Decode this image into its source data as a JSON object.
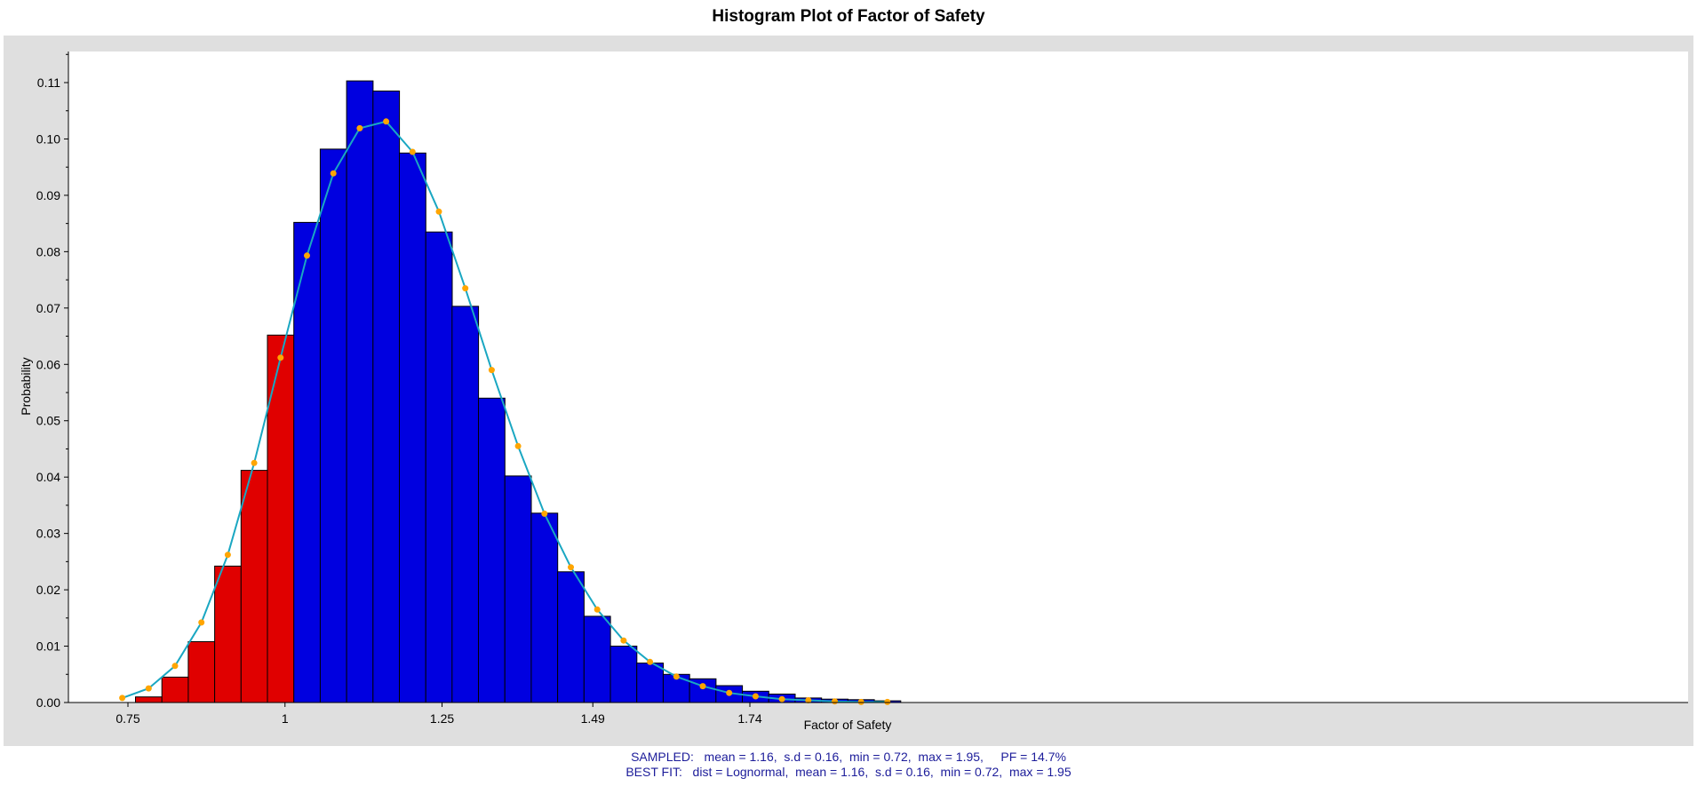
{
  "chart_data": {
    "type": "bar",
    "title": "Histogram Plot of Factor of Safety",
    "xlabel": "Factor of Safety",
    "ylabel": "Probability",
    "xlim": [
      0.72,
      1.95
    ],
    "ylim": [
      0,
      0.115
    ],
    "x_ticks": [
      0.75,
      1,
      1.25,
      1.49,
      1.74
    ],
    "x_tick_labels": [
      "0.75",
      "1",
      "1.25",
      "1.49",
      "1.74"
    ],
    "y_ticks": [
      0,
      0.01,
      0.02,
      0.03,
      0.04,
      0.05,
      0.06,
      0.07,
      0.08,
      0.09,
      0.1,
      0.11
    ],
    "y_tick_labels": [
      "0.00",
      "0.01",
      "0.02",
      "0.03",
      "0.04",
      "0.05",
      "0.06",
      "0.07",
      "0.08",
      "0.09",
      "0.10",
      "0.11"
    ],
    "grid": false,
    "bin_width": 0.0422,
    "bins": [
      {
        "x0": 0.762,
        "value": 0.001,
        "failed": true
      },
      {
        "x0": 0.804,
        "value": 0.0045,
        "failed": true
      },
      {
        "x0": 0.846,
        "value": 0.0108,
        "failed": true
      },
      {
        "x0": 0.888,
        "value": 0.0242,
        "failed": true
      },
      {
        "x0": 0.93,
        "value": 0.0412,
        "failed": true
      },
      {
        "x0": 0.972,
        "value": 0.0652,
        "failed": true
      },
      {
        "x0": 1.014,
        "value": 0.0852,
        "failed": false
      },
      {
        "x0": 1.056,
        "value": 0.0982,
        "failed": false
      },
      {
        "x0": 1.098,
        "value": 0.1103,
        "failed": false
      },
      {
        "x0": 1.14,
        "value": 0.1085,
        "failed": false
      },
      {
        "x0": 1.182,
        "value": 0.0975,
        "failed": false
      },
      {
        "x0": 1.224,
        "value": 0.0835,
        "failed": false
      },
      {
        "x0": 1.266,
        "value": 0.0703,
        "failed": false
      },
      {
        "x0": 1.308,
        "value": 0.054,
        "failed": false
      },
      {
        "x0": 1.35,
        "value": 0.0402,
        "failed": false
      },
      {
        "x0": 1.392,
        "value": 0.0336,
        "failed": false
      },
      {
        "x0": 1.434,
        "value": 0.0232,
        "failed": false
      },
      {
        "x0": 1.476,
        "value": 0.0153,
        "failed": false
      },
      {
        "x0": 1.518,
        "value": 0.01,
        "failed": false
      },
      {
        "x0": 1.56,
        "value": 0.007,
        "failed": false
      },
      {
        "x0": 1.602,
        "value": 0.005,
        "failed": false
      },
      {
        "x0": 1.644,
        "value": 0.0042,
        "failed": false
      },
      {
        "x0": 1.686,
        "value": 0.003,
        "failed": false
      },
      {
        "x0": 1.728,
        "value": 0.002,
        "failed": false
      },
      {
        "x0": 1.77,
        "value": 0.0015,
        "failed": false
      },
      {
        "x0": 1.812,
        "value": 0.0008,
        "failed": false
      },
      {
        "x0": 1.854,
        "value": 0.0006,
        "failed": false
      },
      {
        "x0": 1.896,
        "value": 0.0005,
        "failed": false
      },
      {
        "x0": 1.938,
        "value": 0.0003,
        "failed": false
      }
    ],
    "fit_curve": {
      "x": [
        0.741,
        0.783,
        0.825,
        0.867,
        0.909,
        0.951,
        0.993,
        1.035,
        1.077,
        1.119,
        1.161,
        1.203,
        1.245,
        1.287,
        1.329,
        1.371,
        1.413,
        1.455,
        1.497,
        1.539,
        1.581,
        1.623,
        1.665,
        1.707,
        1.749,
        1.791,
        1.833,
        1.875,
        1.917,
        1.959
      ],
      "y": [
        0.0008,
        0.0025,
        0.0065,
        0.0142,
        0.0262,
        0.0425,
        0.0612,
        0.0793,
        0.0939,
        0.1019,
        0.1031,
        0.0977,
        0.0871,
        0.0735,
        0.059,
        0.0455,
        0.0335,
        0.024,
        0.0165,
        0.011,
        0.0072,
        0.0046,
        0.0029,
        0.0017,
        0.0011,
        0.0006,
        0.0004,
        0.0002,
        0.0001,
        0.0001
      ]
    },
    "colors": {
      "failed_bar": "#e00000",
      "safe_bar": "#0000e0",
      "bar_edge": "#000000",
      "fit_line": "#1aa7c2",
      "fit_marker": "#ffa500",
      "plot_bg": "#ffffff",
      "panel_bg": "#dfdfdf"
    }
  },
  "footer": {
    "sampled": "SAMPLED:   mean = 1.16,  s.d = 0.16,  min = 0.72,  max = 1.95,     PF = 14.7%",
    "best_fit": "BEST FIT:   dist = Lognormal,  mean = 1.16,  s.d = 0.16,  min = 0.72,  max = 1.95"
  }
}
